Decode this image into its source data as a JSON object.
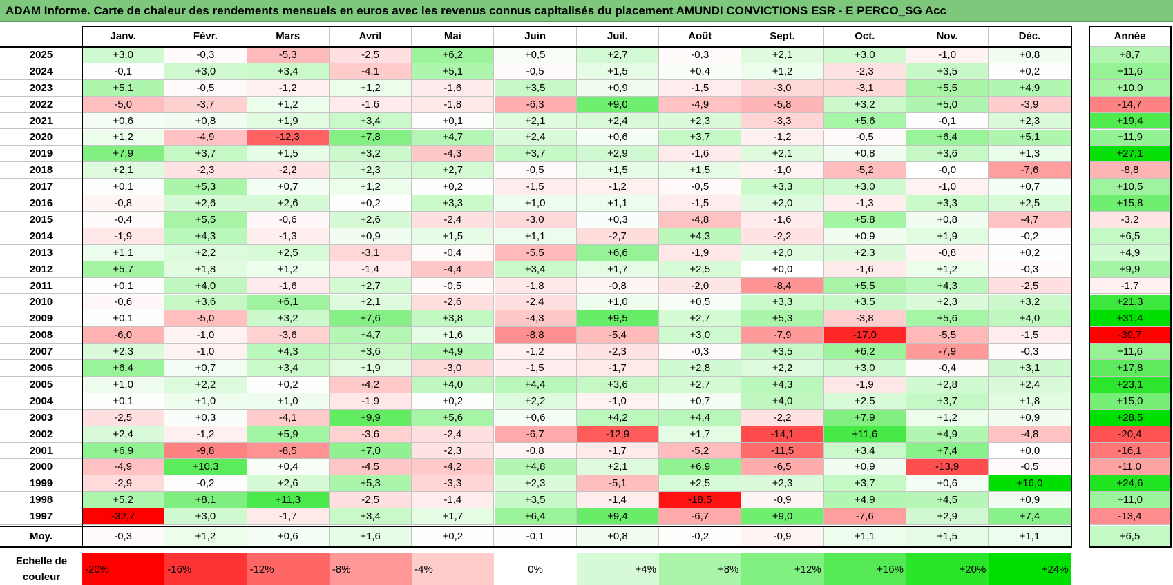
{
  "title": "ADAM Informe. Carte de chaleur des rendements mensuels en euros avec les revenus connus capitalisés du placement AMUNDI CONVICTIONS ESR - E PERCO_SG Acc",
  "colors": {
    "negative_max": "#ff0000",
    "neutral": "#ffffff",
    "positive_max": "#00e000",
    "title_bg": "#7dc87d"
  },
  "chart_data": {
    "type": "heatmap",
    "title": "ADAM Informe. Carte de chaleur des rendements mensuels en euros avec les revenus connus capitalisés du placement AMUNDI CONVICTIONS ESR - E PERCO_SG Acc",
    "months": [
      "Janv.",
      "Févr.",
      "Mars",
      "Avril",
      "Mai",
      "Juin",
      "Juil.",
      "Août",
      "Sept.",
      "Oct.",
      "Nov.",
      "Déc."
    ],
    "year_header": "Année",
    "years": [
      2025,
      2024,
      2023,
      2022,
      2021,
      2020,
      2019,
      2018,
      2017,
      2016,
      2015,
      2014,
      2013,
      2012,
      2011,
      2010,
      2009,
      2008,
      2007,
      2006,
      2005,
      2004,
      2003,
      2002,
      2001,
      2000,
      1999,
      1998,
      1997
    ],
    "values": [
      [
        "+3,0",
        "-0,3",
        "-5,3",
        "-2,5",
        "+6,2",
        "+0,5",
        "+2,7",
        "-0,3",
        "+2,1",
        "+3,0",
        "-1,0",
        "+0,8"
      ],
      [
        "-0,1",
        "+3,0",
        "+3,4",
        "-4,1",
        "+5,1",
        "-0,5",
        "+1,5",
        "+0,4",
        "+1,2",
        "-2,3",
        "+3,5",
        "+0,2"
      ],
      [
        "+5,1",
        "-0,5",
        "-1,2",
        "+1,2",
        "-1,6",
        "+3,5",
        "+0,9",
        "-1,5",
        "-3,0",
        "-3,1",
        "+5,5",
        "+4,9"
      ],
      [
        "-5,0",
        "-3,7",
        "+1,2",
        "-1,6",
        "-1,8",
        "-6,3",
        "+9,0",
        "-4,9",
        "-5,8",
        "+3,2",
        "+5,0",
        "-3,9"
      ],
      [
        "+0,6",
        "+0,8",
        "+1,9",
        "+3,4",
        "+0,1",
        "+2,1",
        "+2,4",
        "+2,3",
        "-3,3",
        "+5,6",
        "-0,1",
        "+2,3"
      ],
      [
        "+1,2",
        "-4,9",
        "-12,3",
        "+7,8",
        "+4,7",
        "+2,4",
        "+0,6",
        "+3,7",
        "-1,2",
        "-0,5",
        "+6,4",
        "+5,1"
      ],
      [
        "+7,9",
        "+3,7",
        "+1,5",
        "+3,2",
        "-4,3",
        "+3,7",
        "+2,9",
        "-1,6",
        "+2,1",
        "+0,8",
        "+3,6",
        "+1,3"
      ],
      [
        "+2,1",
        "-2,3",
        "-2,2",
        "+2,3",
        "+2,7",
        "-0,5",
        "+1,5",
        "+1,5",
        "-1,0",
        "-5,2",
        "-0,0",
        "-7,6"
      ],
      [
        "+0,1",
        "+5,3",
        "+0,7",
        "+1,2",
        "+0,2",
        "-1,5",
        "-1,2",
        "-0,5",
        "+3,3",
        "+3,0",
        "-1,0",
        "+0,7"
      ],
      [
        "-0,8",
        "+2,6",
        "+2,6",
        "+0,2",
        "+3,3",
        "+1,0",
        "+1,1",
        "-1,5",
        "+2,0",
        "-1,3",
        "+3,3",
        "+2,5"
      ],
      [
        "-0,4",
        "+5,5",
        "-0,6",
        "+2,6",
        "-2,4",
        "-3,0",
        "+0,3",
        "-4,8",
        "-1,6",
        "+5,8",
        "+0,8",
        "-4,7"
      ],
      [
        "-1,9",
        "+4,3",
        "-1,3",
        "+0,9",
        "+1,5",
        "+1,1",
        "-2,7",
        "+4,3",
        "-2,2",
        "+0,9",
        "+1,9",
        "-0,2"
      ],
      [
        "+1,1",
        "+2,2",
        "+2,5",
        "-3,1",
        "-0,4",
        "-5,5",
        "+6,6",
        "-1,9",
        "+2,0",
        "+2,3",
        "-0,8",
        "+0,2"
      ],
      [
        "+5,7",
        "+1,8",
        "+1,2",
        "-1,4",
        "-4,4",
        "+3,4",
        "+1,7",
        "+2,5",
        "+0,0",
        "-1,6",
        "+1,2",
        "-0,3"
      ],
      [
        "+0,1",
        "+4,0",
        "-1,6",
        "+2,7",
        "-0,5",
        "-1,8",
        "-0,8",
        "-2,0",
        "-8,4",
        "+5,5",
        "+4,3",
        "-2,5"
      ],
      [
        "-0,6",
        "+3,6",
        "+6,1",
        "+2,1",
        "-2,6",
        "-2,4",
        "+1,0",
        "+0,5",
        "+3,3",
        "+3,5",
        "+2,3",
        "+3,2"
      ],
      [
        "+0,1",
        "-5,0",
        "+3,2",
        "+7,6",
        "+3,8",
        "-4,3",
        "+9,5",
        "+2,7",
        "+5,3",
        "-3,8",
        "+5,6",
        "+4,0"
      ],
      [
        "-6,0",
        "-1,0",
        "-3,6",
        "+4,7",
        "+1,6",
        "-8,8",
        "-5,4",
        "+3,0",
        "-7,9",
        "-17,0",
        "-5,5",
        "-1,5"
      ],
      [
        "+2,3",
        "-1,0",
        "+4,3",
        "+3,6",
        "+4,9",
        "-1,2",
        "-2,3",
        "-0,3",
        "+3,5",
        "+6,2",
        "-7,9",
        "-0,3"
      ],
      [
        "+6,4",
        "+0,7",
        "+3,4",
        "+1,9",
        "-3,0",
        "-1,5",
        "-1,7",
        "+2,8",
        "+2,2",
        "+3,0",
        "-0,4",
        "+3,1"
      ],
      [
        "+1,0",
        "+2,2",
        "+0,2",
        "-4,2",
        "+4,0",
        "+4,4",
        "+3,6",
        "+2,7",
        "+4,3",
        "-1,9",
        "+2,8",
        "+2,4"
      ],
      [
        "+0,1",
        "+1,0",
        "+1,0",
        "-1,9",
        "+0,2",
        "+2,2",
        "-1,0",
        "+0,7",
        "+4,0",
        "+2,5",
        "+3,7",
        "+1,8"
      ],
      [
        "-2,5",
        "+0,3",
        "-4,1",
        "+9,9",
        "+5,6",
        "+0,6",
        "+4,2",
        "+4,4",
        "-2,2",
        "+7,9",
        "+1,2",
        "+0,9"
      ],
      [
        "+2,4",
        "-1,2",
        "+5,9",
        "-3,6",
        "-2,4",
        "-6,7",
        "-12,9",
        "+1,7",
        "-14,1",
        "+11,6",
        "+4,9",
        "-4,8"
      ],
      [
        "+6,9",
        "-9,8",
        "-8,5",
        "+7,0",
        "-2,3",
        "-0,8",
        "-1,7",
        "-5,2",
        "-11,5",
        "+3,4",
        "+7,4",
        "+0,0"
      ],
      [
        "-4,9",
        "+10,3",
        "+0,4",
        "-4,5",
        "-4,2",
        "+4,8",
        "+2,1",
        "+6,9",
        "-6,5",
        "+0,9",
        "-13,9",
        "-0,5"
      ],
      [
        "-2,9",
        "-0,2",
        "+2,6",
        "+5,3",
        "-3,3",
        "+2,3",
        "-5,1",
        "+2,5",
        "+2,3",
        "+3,7",
        "+0,6",
        "+16,0"
      ],
      [
        "+5,2",
        "+8,1",
        "+11,3",
        "-2,5",
        "-1,4",
        "+3,5",
        "-1,4",
        "-18,5",
        "-0,9",
        "+4,9",
        "+4,5",
        "+0,9"
      ],
      [
        "-32,7",
        "+3,0",
        "-1,7",
        "+3,4",
        "+1,7",
        "+6,4",
        "+9,4",
        "-6,7",
        "+9,0",
        "-7,6",
        "+2,9",
        "+7,4"
      ]
    ],
    "annual": [
      "+8,7",
      "+11,6",
      "+10,0",
      "-14,7",
      "+19,4",
      "+11,9",
      "+27,1",
      "-8,8",
      "+10,5",
      "+15,8",
      "-3,2",
      "+6,5",
      "+4,9",
      "+9,9",
      "-1,7",
      "+21,3",
      "+31,4",
      "-39,7",
      "+11,6",
      "+17,8",
      "+23,1",
      "+15,0",
      "+28,5",
      "-20,4",
      "-16,1",
      "-11,0",
      "+24,6",
      "+11,0",
      "-13,4"
    ],
    "average_label": "Moy.",
    "average": [
      "-0,3",
      "+1,2",
      "+0,6",
      "+1,6",
      "+0,2",
      "-0,1",
      "+0,8",
      "-0,2",
      "-0,9",
      "+1,1",
      "+1,5",
      "+1,1"
    ],
    "average_annual": "+6,5",
    "scale_label": "Echelle de couleur",
    "scale": [
      "-20%",
      "-16%",
      "-12%",
      "-8%",
      "-4%",
      "0%",
      "+4%",
      "+8%",
      "+12%",
      "+16%",
      "+20%",
      "+24%"
    ]
  }
}
